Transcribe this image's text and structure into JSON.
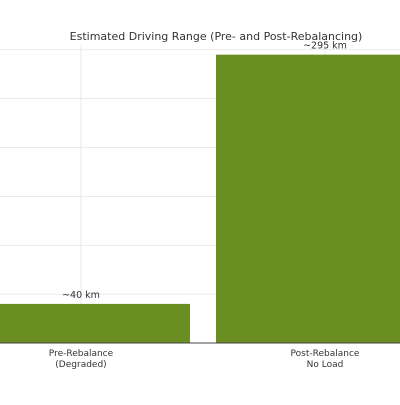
{
  "chart_data": {
    "type": "bar",
    "title": "Estimated Driving Range (Pre- and Post-Rebalancing)",
    "xlabel": "",
    "ylabel": "",
    "categories": [
      "Pre-Rebalance\n(Degraded)",
      "Post-Rebalance\nNo Load"
    ],
    "values": [
      40,
      295
    ],
    "data_labels": [
      "~40 km",
      "~295 km"
    ],
    "ylim": [
      0,
      310
    ],
    "grid": true,
    "legend": "none",
    "colors": {
      "bar": "#6b8e23",
      "grid": "#e3e3e3",
      "axis": "#444444",
      "text": "#333333"
    }
  }
}
